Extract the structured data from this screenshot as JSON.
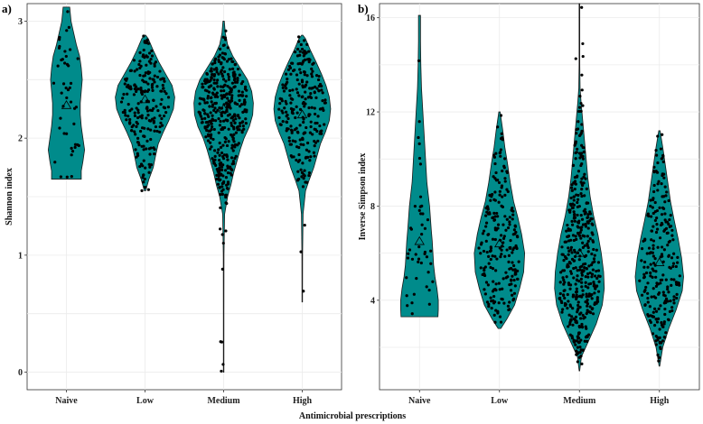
{
  "figure": {
    "shared_xlabel": "Antimicrobial prescriptions",
    "fill_color": "#008b8b",
    "outline_color": "#1a1a1a",
    "point_color": "#000000",
    "grid_color": "#ebebeb"
  },
  "chart_data": [
    {
      "type": "violin",
      "panel_tag": "a)",
      "title": "",
      "xlabel": "",
      "ylabel": "Shannon index",
      "categories": [
        "Naive",
        "Low",
        "Medium",
        "High"
      ],
      "ylim": [
        -0.15,
        3.15
      ],
      "yticks": [
        0,
        1,
        2,
        3
      ],
      "grid": true,
      "mean_marker": "triangle",
      "violins": [
        {
          "category": "Naive",
          "min": 1.65,
          "max": 3.12,
          "n": 45,
          "mean": 2.28,
          "density": [
            [
              1.65,
              0.45
            ],
            [
              1.72,
              0.45
            ],
            [
              1.8,
              0.5
            ],
            [
              1.9,
              0.55
            ],
            [
              2.0,
              0.5
            ],
            [
              2.1,
              0.45
            ],
            [
              2.2,
              0.42
            ],
            [
              2.3,
              0.42
            ],
            [
              2.4,
              0.45
            ],
            [
              2.5,
              0.48
            ],
            [
              2.6,
              0.45
            ],
            [
              2.7,
              0.4
            ],
            [
              2.8,
              0.3
            ],
            [
              2.9,
              0.22
            ],
            [
              3.0,
              0.14
            ],
            [
              3.12,
              0.1
            ]
          ]
        },
        {
          "category": "Low",
          "min": 1.55,
          "max": 2.88,
          "n": 220,
          "mean": 2.33,
          "density": [
            [
              1.55,
              0.02
            ],
            [
              1.65,
              0.12
            ],
            [
              1.75,
              0.25
            ],
            [
              1.85,
              0.32
            ],
            [
              1.95,
              0.4
            ],
            [
              2.05,
              0.55
            ],
            [
              2.15,
              0.72
            ],
            [
              2.25,
              0.86
            ],
            [
              2.35,
              0.9
            ],
            [
              2.45,
              0.82
            ],
            [
              2.55,
              0.62
            ],
            [
              2.65,
              0.42
            ],
            [
              2.75,
              0.25
            ],
            [
              2.85,
              0.1
            ],
            [
              2.88,
              0.02
            ]
          ]
        },
        {
          "category": "Medium",
          "min": 0.0,
          "max": 3.0,
          "n": 420,
          "mean": 2.25,
          "density": [
            [
              0.0,
              0.008
            ],
            [
              0.5,
              0.008
            ],
            [
              1.0,
              0.01
            ],
            [
              1.35,
              0.03
            ],
            [
              1.5,
              0.12
            ],
            [
              1.6,
              0.22
            ],
            [
              1.7,
              0.3
            ],
            [
              1.8,
              0.4
            ],
            [
              1.9,
              0.5
            ],
            [
              2.0,
              0.62
            ],
            [
              2.1,
              0.78
            ],
            [
              2.2,
              0.88
            ],
            [
              2.3,
              0.9
            ],
            [
              2.4,
              0.85
            ],
            [
              2.5,
              0.72
            ],
            [
              2.6,
              0.5
            ],
            [
              2.7,
              0.28
            ],
            [
              2.8,
              0.12
            ],
            [
              2.9,
              0.05
            ],
            [
              3.0,
              0.02
            ]
          ]
        },
        {
          "category": "High",
          "min": 0.6,
          "max": 2.88,
          "n": 240,
          "mean": 2.2,
          "density": [
            [
              0.6,
              0.008
            ],
            [
              1.0,
              0.01
            ],
            [
              1.35,
              0.025
            ],
            [
              1.55,
              0.1
            ],
            [
              1.65,
              0.22
            ],
            [
              1.75,
              0.35
            ],
            [
              1.85,
              0.45
            ],
            [
              1.95,
              0.55
            ],
            [
              2.05,
              0.7
            ],
            [
              2.15,
              0.82
            ],
            [
              2.25,
              0.86
            ],
            [
              2.35,
              0.82
            ],
            [
              2.45,
              0.72
            ],
            [
              2.55,
              0.58
            ],
            [
              2.65,
              0.42
            ],
            [
              2.75,
              0.25
            ],
            [
              2.85,
              0.1
            ],
            [
              2.88,
              0.02
            ]
          ]
        }
      ]
    },
    {
      "type": "violin",
      "panel_tag": "b)",
      "title": "",
      "xlabel": "",
      "ylabel": "Inverse Simpson index",
      "categories": [
        "Naive",
        "Low",
        "Medium",
        "High"
      ],
      "ylim": [
        0.2,
        16.6
      ],
      "yticks": [
        4,
        8,
        12,
        16
      ],
      "grid": true,
      "mean_marker": "triangle",
      "violins": [
        {
          "category": "Naive",
          "min": 3.3,
          "max": 16.1,
          "n": 45,
          "mean": 6.5,
          "density": [
            [
              3.3,
              0.55
            ],
            [
              3.6,
              0.56
            ],
            [
              4.0,
              0.56
            ],
            [
              4.5,
              0.52
            ],
            [
              5.0,
              0.46
            ],
            [
              5.5,
              0.42
            ],
            [
              6.0,
              0.4
            ],
            [
              6.5,
              0.38
            ],
            [
              7.0,
              0.35
            ],
            [
              8.0,
              0.3
            ],
            [
              9.0,
              0.22
            ],
            [
              10.0,
              0.18
            ],
            [
              11.0,
              0.14
            ],
            [
              12.0,
              0.1
            ],
            [
              13.0,
              0.06
            ],
            [
              14.0,
              0.04
            ],
            [
              15.0,
              0.03
            ],
            [
              16.1,
              0.03
            ]
          ]
        },
        {
          "category": "Low",
          "min": 2.8,
          "max": 12.0,
          "n": 220,
          "mean": 6.4,
          "density": [
            [
              2.8,
              0.04
            ],
            [
              3.2,
              0.22
            ],
            [
              3.8,
              0.45
            ],
            [
              4.5,
              0.6
            ],
            [
              5.2,
              0.72
            ],
            [
              6.0,
              0.75
            ],
            [
              6.8,
              0.66
            ],
            [
              7.5,
              0.55
            ],
            [
              8.2,
              0.42
            ],
            [
              9.0,
              0.32
            ],
            [
              9.8,
              0.24
            ],
            [
              10.5,
              0.16
            ],
            [
              11.2,
              0.1
            ],
            [
              12.0,
              0.02
            ]
          ]
        },
        {
          "category": "Medium",
          "min": 1.0,
          "max": 16.6,
          "n": 420,
          "mean": 6.0,
          "density": [
            [
              1.0,
              0.008
            ],
            [
              1.6,
              0.06
            ],
            [
              2.2,
              0.25
            ],
            [
              3.0,
              0.5
            ],
            [
              3.8,
              0.68
            ],
            [
              4.5,
              0.74
            ],
            [
              5.2,
              0.72
            ],
            [
              6.0,
              0.65
            ],
            [
              6.8,
              0.55
            ],
            [
              7.6,
              0.42
            ],
            [
              8.4,
              0.32
            ],
            [
              9.2,
              0.25
            ],
            [
              10.0,
              0.2
            ],
            [
              10.8,
              0.15
            ],
            [
              11.6,
              0.1
            ],
            [
              12.4,
              0.05
            ],
            [
              13.0,
              0.02
            ],
            [
              14.0,
              0.01
            ],
            [
              16.6,
              0.01
            ]
          ]
        },
        {
          "category": "High",
          "min": 1.2,
          "max": 11.2,
          "n": 240,
          "mean": 5.6,
          "density": [
            [
              1.2,
              0.01
            ],
            [
              2.0,
              0.1
            ],
            [
              2.8,
              0.28
            ],
            [
              3.6,
              0.5
            ],
            [
              4.4,
              0.68
            ],
            [
              5.0,
              0.72
            ],
            [
              5.8,
              0.66
            ],
            [
              6.6,
              0.56
            ],
            [
              7.4,
              0.44
            ],
            [
              8.2,
              0.33
            ],
            [
              9.0,
              0.25
            ],
            [
              9.8,
              0.17
            ],
            [
              10.5,
              0.1
            ],
            [
              11.2,
              0.02
            ]
          ]
        }
      ]
    }
  ]
}
